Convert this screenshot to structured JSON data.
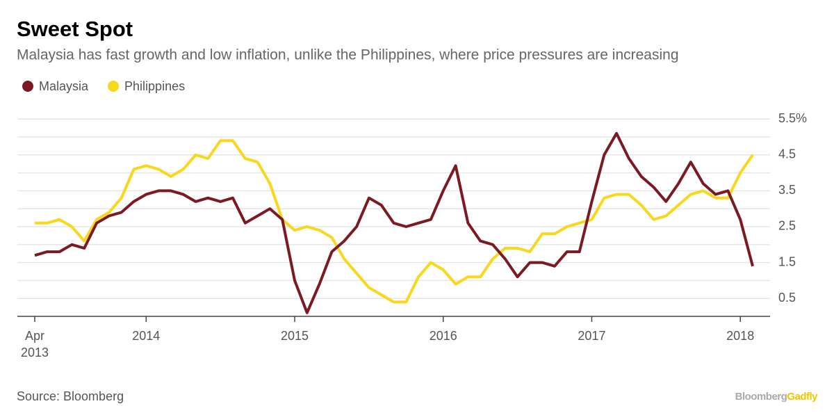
{
  "chart_data": {
    "type": "line",
    "title": "Sweet Spot",
    "subtitle": "Malaysia has fast growth and low inflation, unlike the Philippines, where price pressures are increasing",
    "source": "Source: Bloomberg",
    "brand": {
      "name": "Bloomberg",
      "suffix": "Gadfly"
    },
    "x": [
      "2013-04",
      "2013-05",
      "2013-06",
      "2013-07",
      "2013-08",
      "2013-09",
      "2013-10",
      "2013-11",
      "2013-12",
      "2014-01",
      "2014-02",
      "2014-03",
      "2014-04",
      "2014-05",
      "2014-06",
      "2014-07",
      "2014-08",
      "2014-09",
      "2014-10",
      "2014-11",
      "2014-12",
      "2015-01",
      "2015-02",
      "2015-03",
      "2015-04",
      "2015-05",
      "2015-06",
      "2015-07",
      "2015-08",
      "2015-09",
      "2015-10",
      "2015-11",
      "2015-12",
      "2016-01",
      "2016-02",
      "2016-03",
      "2016-04",
      "2016-05",
      "2016-06",
      "2016-07",
      "2016-08",
      "2016-09",
      "2016-10",
      "2016-11",
      "2016-12",
      "2017-01",
      "2017-02",
      "2017-03",
      "2017-04",
      "2017-05",
      "2017-06",
      "2017-07",
      "2017-08",
      "2017-09",
      "2017-10",
      "2017-11",
      "2017-12",
      "2018-01",
      "2018-02"
    ],
    "series": [
      {
        "name": "Malaysia",
        "color": "#7b1a22",
        "values": [
          1.7,
          1.8,
          1.8,
          2.0,
          1.9,
          2.6,
          2.8,
          2.9,
          3.2,
          3.4,
          3.5,
          3.5,
          3.4,
          3.2,
          3.3,
          3.2,
          3.3,
          2.6,
          2.8,
          3.0,
          2.7,
          1.0,
          0.1,
          0.9,
          1.8,
          2.1,
          2.5,
          3.3,
          3.1,
          2.6,
          2.5,
          2.6,
          2.7,
          3.5,
          4.2,
          2.6,
          2.1,
          2.0,
          1.6,
          1.1,
          1.5,
          1.5,
          1.4,
          1.8,
          1.8,
          3.2,
          4.5,
          5.1,
          4.4,
          3.9,
          3.6,
          3.2,
          3.7,
          4.3,
          3.7,
          3.4,
          3.5,
          2.7,
          1.4
        ]
      },
      {
        "name": "Philippines",
        "color": "#f9d71c",
        "values": [
          2.6,
          2.6,
          2.7,
          2.5,
          2.1,
          2.7,
          2.9,
          3.3,
          4.1,
          4.2,
          4.1,
          3.9,
          4.1,
          4.5,
          4.4,
          4.9,
          4.9,
          4.4,
          4.3,
          3.7,
          2.7,
          2.4,
          2.5,
          2.4,
          2.2,
          1.6,
          1.2,
          0.8,
          0.6,
          0.4,
          0.4,
          1.1,
          1.5,
          1.3,
          0.9,
          1.1,
          1.1,
          1.6,
          1.9,
          1.9,
          1.8,
          2.3,
          2.3,
          2.5,
          2.6,
          2.7,
          3.3,
          3.4,
          3.4,
          3.1,
          2.7,
          2.8,
          3.1,
          3.4,
          3.5,
          3.3,
          3.3,
          4.0,
          4.5
        ]
      }
    ],
    "xticks": [
      {
        "value": "2013-04",
        "label": "Apr 2013"
      },
      {
        "value": "2014-01",
        "label": "2014"
      },
      {
        "value": "2015-01",
        "label": "2015"
      },
      {
        "value": "2016-01",
        "label": "2016"
      },
      {
        "value": "2017-01",
        "label": "2017"
      },
      {
        "value": "2018-01",
        "label": "2018"
      }
    ],
    "ylim": [
      0,
      5.62
    ],
    "yticks": [
      0.5,
      1.5,
      2.5,
      3.5,
      4.5,
      {
        "value": 5.5,
        "label": "5.5%"
      }
    ],
    "minor_gridlines": [
      1,
      2,
      3,
      4,
      5
    ],
    "grid": true,
    "legend": "top-left"
  }
}
